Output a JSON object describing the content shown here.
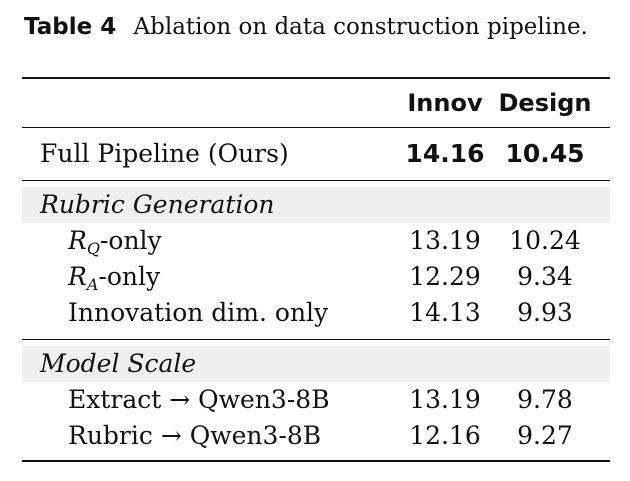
{
  "caption": {
    "label": "Table 4",
    "text": "Ablation on data construction pipeline."
  },
  "table": {
    "headers": [
      "",
      "Innov",
      "Design"
    ],
    "full_row": {
      "label": "Full Pipeline (Ours)",
      "innov": "14.16",
      "design": "10.45"
    },
    "sections": [
      {
        "title": "Rubric Generation",
        "rows": [
          {
            "label_math": "R",
            "label_sub": "Q",
            "label_rest": "-only",
            "innov": "13.19",
            "design": "10.24"
          },
          {
            "label_math": "R",
            "label_sub": "A",
            "label_rest": "-only",
            "innov": "12.29",
            "design": "9.34"
          },
          {
            "label": "Innovation dim. only",
            "innov": "14.13",
            "design": "9.93"
          }
        ]
      },
      {
        "title": "Model Scale",
        "rows": [
          {
            "label": "Extract → Qwen3-8B",
            "innov": "13.19",
            "design": "9.78"
          },
          {
            "label": "Rubric → Qwen3-8B",
            "innov": "12.16",
            "design": "9.27"
          }
        ]
      }
    ]
  }
}
